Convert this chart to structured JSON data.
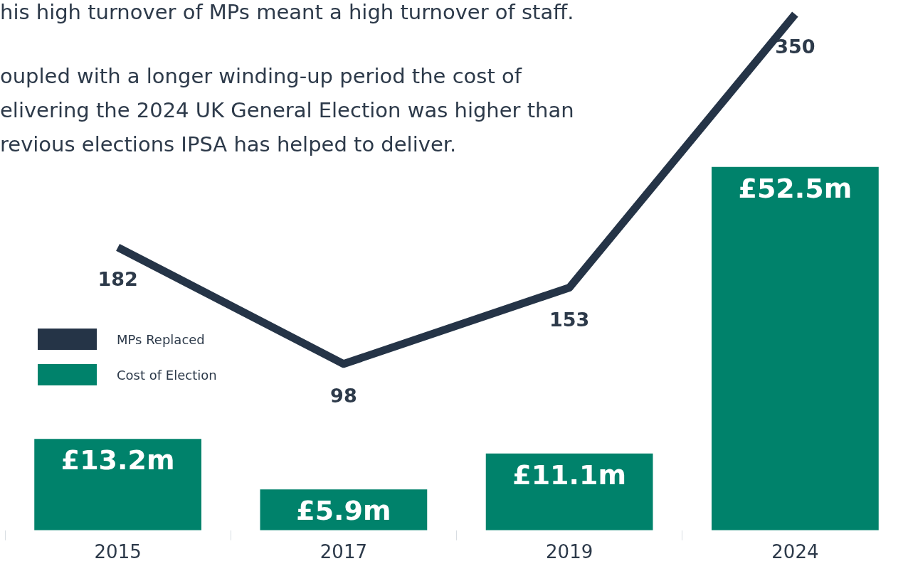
{
  "chart_data": {
    "type": "bar",
    "categories": [
      "2015",
      "2017",
      "2019",
      "2024"
    ],
    "series": [
      {
        "name": "MPs Replaced",
        "type": "line",
        "axis": "y2",
        "color": "#253447",
        "values": [
          182,
          98,
          153,
          350
        ],
        "value_labels": [
          "182",
          "98",
          "153",
          "350"
        ]
      },
      {
        "name": "Cost of Election",
        "color": "#00826b",
        "values": [
          13.2,
          5.9,
          11.1,
          52.5
        ],
        "value_labels": [
          "£13.2m",
          "£5.9m",
          "£11.1m",
          "£52.5m"
        ]
      }
    ],
    "legend": "left",
    "marker": "none",
    "annotations": [
      "his high turnover of MPs meant a high turnover of staff.",
      "oupled with a longer winding-up period the cost of",
      "elivering the 2024 UK General Election was higher than",
      "revious elections IPSA has helped to deliver."
    ]
  }
}
